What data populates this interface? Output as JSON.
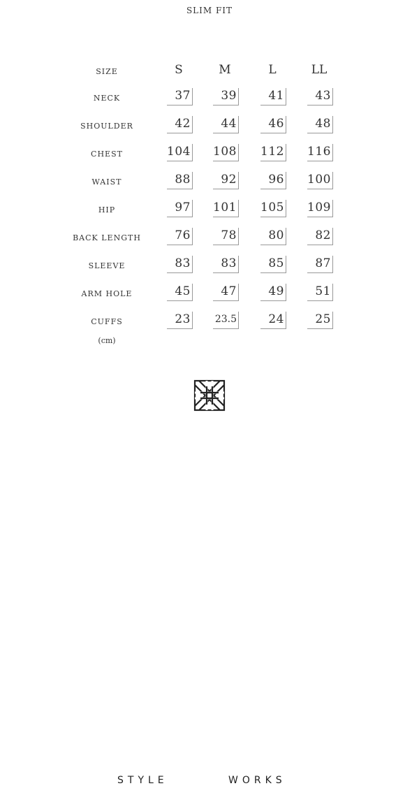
{
  "title": "SLIM FIT",
  "size_header_label": "SIZE",
  "sizes": [
    "S",
    "M",
    "L",
    "LL"
  ],
  "rows": [
    {
      "label": "NECK",
      "values": [
        "37",
        "39",
        "41",
        "43"
      ]
    },
    {
      "label": "SHOULDER",
      "values": [
        "42",
        "44",
        "46",
        "48"
      ]
    },
    {
      "label": "CHEST",
      "values": [
        "104",
        "108",
        "112",
        "116"
      ]
    },
    {
      "label": "WAIST",
      "values": [
        "88",
        "92",
        "96",
        "100"
      ]
    },
    {
      "label": "HIP",
      "values": [
        "97",
        "101",
        "105",
        "109"
      ]
    },
    {
      "label": "BACK LENGTH",
      "values": [
        "76",
        "78",
        "80",
        "82"
      ]
    },
    {
      "label": "SLEEVE",
      "values": [
        "83",
        "83",
        "85",
        "87"
      ]
    },
    {
      "label": "ARM HOLE",
      "values": [
        "45",
        "47",
        "49",
        "51"
      ]
    },
    {
      "label": "CUFFS",
      "values": [
        "23",
        "23.5",
        "24",
        "25"
      ]
    }
  ],
  "unit": "(cm)",
  "brand": {
    "left": "STYLE",
    "right": "WORKS",
    "icon": "woven-cross-logo-icon"
  }
}
